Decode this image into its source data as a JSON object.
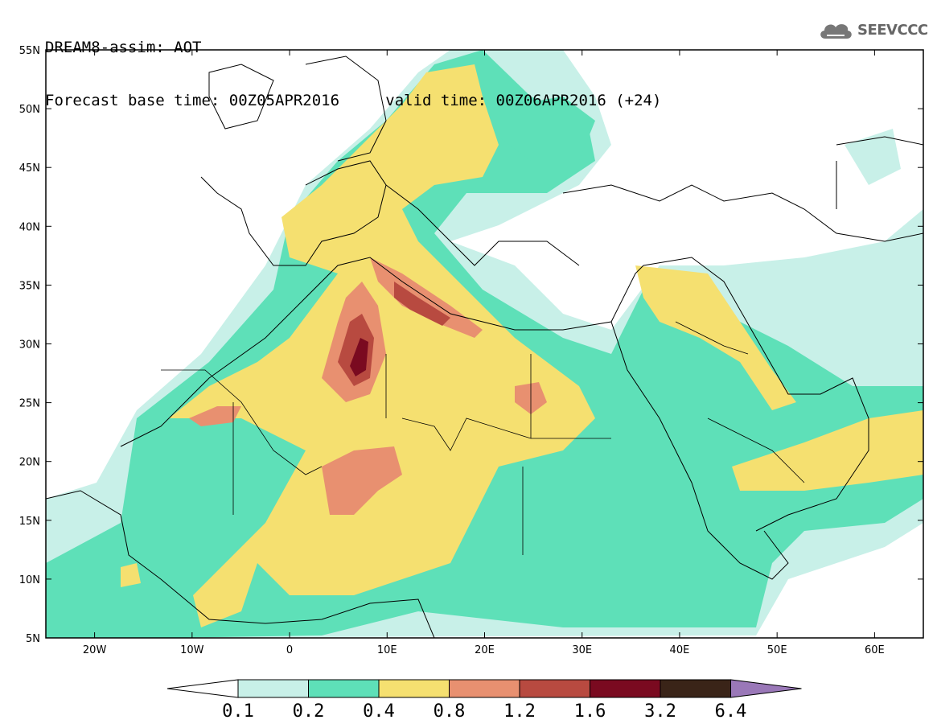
{
  "header": {
    "line1": "DREAM8-assim: AOT",
    "base_label": "Forecast base time: 00Z05APR2016",
    "valid_label": "valid time: 00Z06APR2016 (+24)"
  },
  "logo": {
    "text": "SEEVCCC",
    "icon": "cloud-icon"
  },
  "map": {
    "lat_ticks": [
      "55N",
      "50N",
      "45N",
      "40N",
      "35N",
      "30N",
      "25N",
      "20N",
      "15N",
      "10N",
      "5N"
    ],
    "lon_ticks": [
      "20W",
      "10W",
      "0",
      "10E",
      "20E",
      "30E",
      "40E",
      "50E",
      "60E"
    ],
    "extent": {
      "lon_min": -25,
      "lon_max": 65,
      "lat_min": 5,
      "lat_max": 55
    }
  },
  "colorbar": {
    "colors": [
      "#c8f0e8",
      "#5ee0b8",
      "#f5e070",
      "#e89070",
      "#b84a40",
      "#7a0a20",
      "#3a2418",
      "#9a78b8"
    ],
    "below_color": "#ffffff",
    "labels": [
      "0.1",
      "0.2",
      "0.4",
      "0.8",
      "1.2",
      "1.6",
      "3.2",
      "6.4"
    ]
  }
}
